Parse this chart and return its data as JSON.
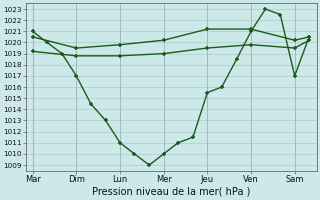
{
  "title": "Pression niveau de la mer( hPa )",
  "background_color": "#cce8e8",
  "line_color": "#1a5c1a",
  "xlabels": [
    "Mar",
    "Dim",
    "Lun",
    "Mer",
    "Jeu",
    "Ven",
    "Sam"
  ],
  "ylim": [
    1008.5,
    1023.5
  ],
  "yticks": [
    1009,
    1010,
    1011,
    1012,
    1013,
    1014,
    1015,
    1016,
    1017,
    1018,
    1019,
    1020,
    1021,
    1022,
    1023
  ],
  "xtick_positions": [
    0,
    1,
    2,
    3,
    4,
    5,
    6
  ],
  "line1_x": [
    0,
    0.33,
    0.67,
    1.0,
    1.33,
    1.67,
    2.0,
    2.33,
    2.67,
    3.0,
    3.33,
    3.67,
    4.0,
    4.33,
    4.67,
    5.0,
    5.33,
    5.67,
    6.0,
    6.33
  ],
  "line1_y": [
    1021.0,
    1020.0,
    1019.0,
    1017.0,
    1014.5,
    1013.0,
    1011.0,
    1010.0,
    1009.0,
    1010.0,
    1011.0,
    1011.5,
    1015.5,
    1016.0,
    1018.5,
    1021.0,
    1023.0,
    1022.5,
    1017.0,
    1020.5
  ],
  "line2_x": [
    0,
    1,
    2,
    3,
    4,
    5,
    6,
    6.33
  ],
  "line2_y": [
    1020.5,
    1019.5,
    1019.8,
    1020.2,
    1021.2,
    1021.2,
    1020.2,
    1020.5
  ],
  "line3_x": [
    0,
    1,
    2,
    3,
    4,
    5,
    6,
    6.33
  ],
  "line3_y": [
    1019.2,
    1018.8,
    1018.8,
    1019.0,
    1019.5,
    1019.8,
    1019.5,
    1020.2
  ]
}
